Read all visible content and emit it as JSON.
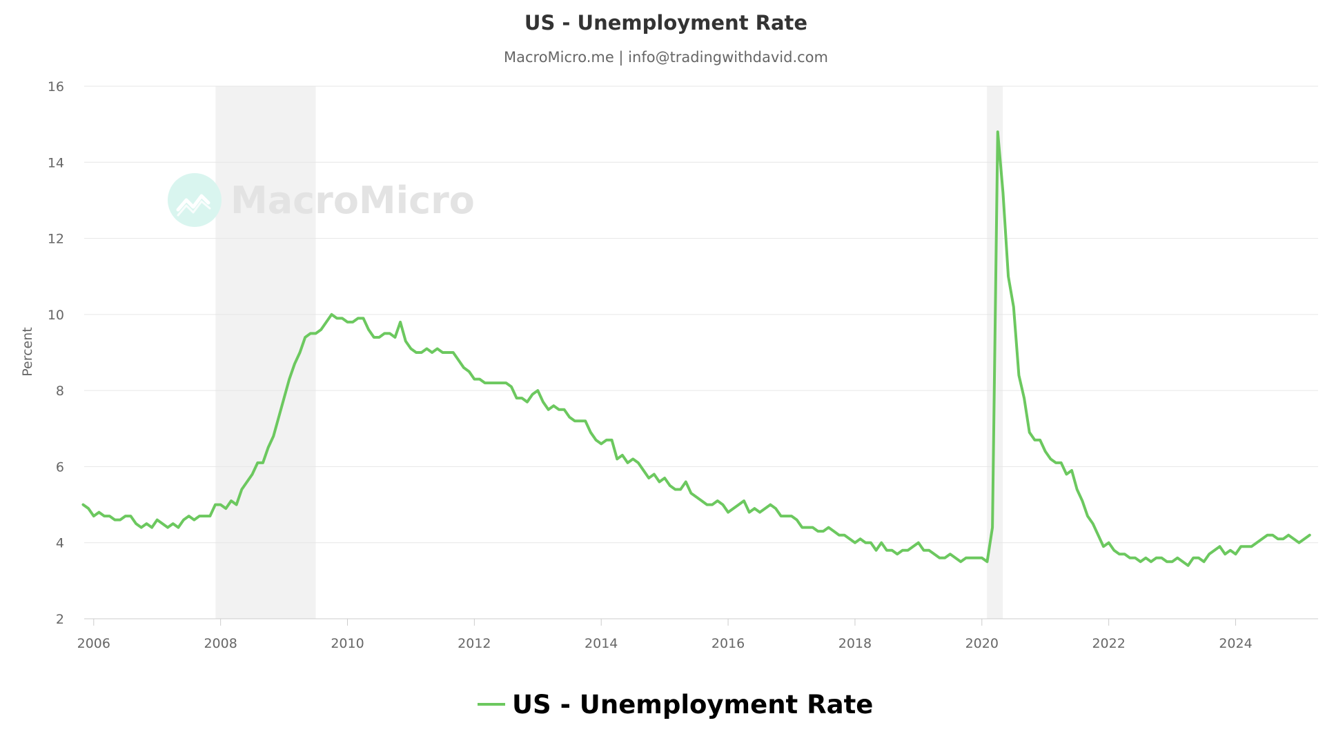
{
  "chart_data": {
    "type": "line",
    "title": "US - Unemployment Rate",
    "subtitle": "MacroMicro.me | info@tradingwithdavid.com",
    "ylabel": "Percent",
    "xlabel": "",
    "xlim": [
      2005.85,
      2025.3
    ],
    "ylim": [
      2,
      16
    ],
    "yticks": [
      "2",
      "4",
      "6",
      "8",
      "10",
      "12",
      "14",
      "16"
    ],
    "xticks": [
      "2006",
      "2008",
      "2010",
      "2012",
      "2014",
      "2016",
      "2018",
      "2020",
      "2022",
      "2024"
    ],
    "grid": "horizontal",
    "legend_position": "bottom-center",
    "watermark": "MacroMicro",
    "shaded_periods": [
      {
        "start": 2007.92,
        "end": 2009.5
      },
      {
        "start": 2020.08,
        "end": 2020.33
      }
    ],
    "series": [
      {
        "name": "US - Unemployment Rate",
        "color": "#6cc85f",
        "start": "2005-11",
        "values": [
          5.0,
          4.9,
          4.7,
          4.8,
          4.7,
          4.7,
          4.6,
          4.6,
          4.7,
          4.7,
          4.5,
          4.4,
          4.5,
          4.4,
          4.6,
          4.5,
          4.4,
          4.5,
          4.4,
          4.6,
          4.7,
          4.6,
          4.7,
          4.7,
          4.7,
          5.0,
          5.0,
          4.9,
          5.1,
          5.0,
          5.4,
          5.6,
          5.8,
          6.1,
          6.1,
          6.5,
          6.8,
          7.3,
          7.8,
          8.3,
          8.7,
          9.0,
          9.4,
          9.5,
          9.5,
          9.6,
          9.8,
          10.0,
          9.9,
          9.9,
          9.8,
          9.8,
          9.9,
          9.9,
          9.6,
          9.4,
          9.4,
          9.5,
          9.5,
          9.4,
          9.8,
          9.3,
          9.1,
          9.0,
          9.0,
          9.1,
          9.0,
          9.1,
          9.0,
          9.0,
          9.0,
          8.8,
          8.6,
          8.5,
          8.3,
          8.3,
          8.2,
          8.2,
          8.2,
          8.2,
          8.2,
          8.1,
          7.8,
          7.8,
          7.7,
          7.9,
          8.0,
          7.7,
          7.5,
          7.6,
          7.5,
          7.5,
          7.3,
          7.2,
          7.2,
          7.2,
          6.9,
          6.7,
          6.6,
          6.7,
          6.7,
          6.2,
          6.3,
          6.1,
          6.2,
          6.1,
          5.9,
          5.7,
          5.8,
          5.6,
          5.7,
          5.5,
          5.4,
          5.4,
          5.6,
          5.3,
          5.2,
          5.1,
          5.0,
          5.0,
          5.1,
          5.0,
          4.8,
          4.9,
          5.0,
          5.1,
          4.8,
          4.9,
          4.8,
          4.9,
          5.0,
          4.9,
          4.7,
          4.7,
          4.7,
          4.6,
          4.4,
          4.4,
          4.4,
          4.3,
          4.3,
          4.4,
          4.3,
          4.2,
          4.2,
          4.1,
          4.0,
          4.1,
          4.0,
          4.0,
          3.8,
          4.0,
          3.8,
          3.8,
          3.7,
          3.8,
          3.8,
          3.9,
          4.0,
          3.8,
          3.8,
          3.7,
          3.6,
          3.6,
          3.7,
          3.6,
          3.5,
          3.6,
          3.6,
          3.6,
          3.6,
          3.5,
          4.4,
          14.8,
          13.2,
          11.0,
          10.2,
          8.4,
          7.8,
          6.9,
          6.7,
          6.7,
          6.4,
          6.2,
          6.1,
          6.1,
          5.8,
          5.9,
          5.4,
          5.1,
          4.7,
          4.5,
          4.2,
          3.9,
          4.0,
          3.8,
          3.7,
          3.7,
          3.6,
          3.6,
          3.5,
          3.6,
          3.5,
          3.6,
          3.6,
          3.5,
          3.5,
          3.6,
          3.5,
          3.4,
          3.6,
          3.6,
          3.5,
          3.7,
          3.8,
          3.9,
          3.7,
          3.8,
          3.7,
          3.9,
          3.9,
          3.9,
          4.0,
          4.1,
          4.2,
          4.2,
          4.1,
          4.1,
          4.2,
          4.1,
          4.0,
          4.1,
          4.2
        ]
      }
    ]
  }
}
